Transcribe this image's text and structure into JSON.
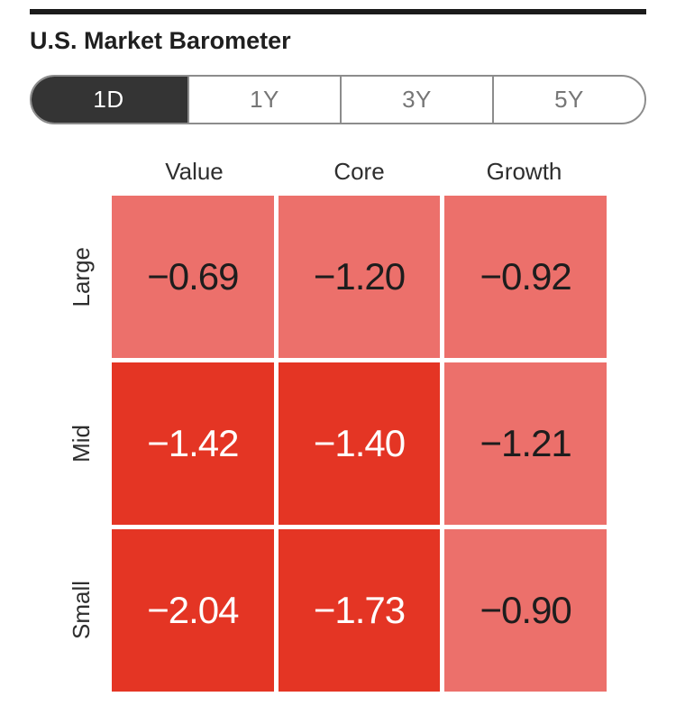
{
  "header": {
    "title": "U.S. Market Barometer",
    "rule_color": "#1b1b1b"
  },
  "timeframe_selector": {
    "selected": "1D",
    "options": [
      {
        "label": "1D",
        "selected": true
      },
      {
        "label": "1Y",
        "selected": false
      },
      {
        "label": "3Y",
        "selected": false
      },
      {
        "label": "5Y",
        "selected": false
      }
    ],
    "selected_bg": "#343434",
    "selected_text_color": "#ffffff",
    "unselected_text_color": "#767676",
    "border_color": "#8c8c8c"
  },
  "chart_data": {
    "type": "heatmap",
    "title": "U.S. Market Barometer",
    "period": "1D",
    "columns": [
      "Value",
      "Core",
      "Growth"
    ],
    "rows": [
      "Large",
      "Mid",
      "Small"
    ],
    "values": [
      [
        -0.69,
        -1.2,
        -0.92
      ],
      [
        -1.42,
        -1.4,
        -1.21
      ],
      [
        -2.04,
        -1.73,
        -0.9
      ]
    ],
    "colors": {
      "negative_mild": "#EC706B",
      "negative_strong": "#E43524",
      "text_on_mild": "#1d1d1d",
      "text_on_strong": "#ffffff"
    },
    "cells": [
      {
        "row": "Large",
        "column": "Value",
        "value": -0.69,
        "display": "−0.69",
        "bg": "#EC706B",
        "text_color": "#1d1d1d"
      },
      {
        "row": "Large",
        "column": "Core",
        "value": -1.2,
        "display": "−1.20",
        "bg": "#EC706B",
        "text_color": "#1d1d1d"
      },
      {
        "row": "Large",
        "column": "Growth",
        "value": -0.92,
        "display": "−0.92",
        "bg": "#EC706B",
        "text_color": "#1d1d1d"
      },
      {
        "row": "Mid",
        "column": "Value",
        "value": -1.42,
        "display": "−1.42",
        "bg": "#E43524",
        "text_color": "#ffffff"
      },
      {
        "row": "Mid",
        "column": "Core",
        "value": -1.4,
        "display": "−1.40",
        "bg": "#E43524",
        "text_color": "#ffffff"
      },
      {
        "row": "Mid",
        "column": "Growth",
        "value": -1.21,
        "display": "−1.21",
        "bg": "#EC706B",
        "text_color": "#1d1d1d"
      },
      {
        "row": "Small",
        "column": "Value",
        "value": -2.04,
        "display": "−2.04",
        "bg": "#E43524",
        "text_color": "#ffffff"
      },
      {
        "row": "Small",
        "column": "Core",
        "value": -1.73,
        "display": "−1.73",
        "bg": "#E43524",
        "text_color": "#ffffff"
      },
      {
        "row": "Small",
        "column": "Growth",
        "value": -0.9,
        "display": "−0.90",
        "bg": "#EC706B",
        "text_color": "#1d1d1d"
      }
    ]
  }
}
